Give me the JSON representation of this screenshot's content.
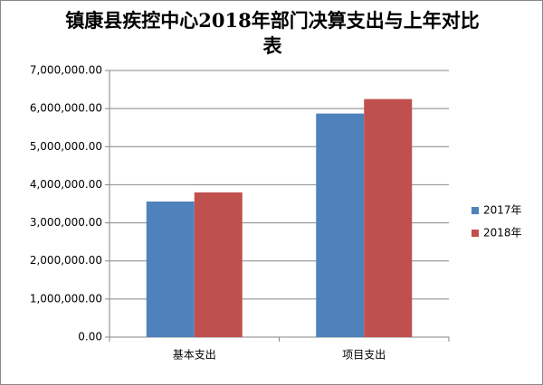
{
  "chart_data": {
    "type": "bar",
    "title": "镇康县疾控中心2018年部门决算支出与上年对比表",
    "categories": [
      "基本支出",
      "项目支出"
    ],
    "series": [
      {
        "name": "2017年",
        "color": "#4f81bd",
        "values": [
          3560000,
          5870000
        ]
      },
      {
        "name": "2018年",
        "color": "#c0504d",
        "values": [
          3800000,
          6250000
        ]
      }
    ],
    "ylim": [
      0,
      7000000
    ],
    "yticks": [
      {
        "value": 0,
        "label": "0.00"
      },
      {
        "value": 1000000,
        "label": "1,000,000.00"
      },
      {
        "value": 2000000,
        "label": "2,000,000.00"
      },
      {
        "value": 3000000,
        "label": "3,000,000.00"
      },
      {
        "value": 4000000,
        "label": "4,000,000.00"
      },
      {
        "value": 5000000,
        "label": "5,000,000.00"
      },
      {
        "value": 6000000,
        "label": "6,000,000.00"
      },
      {
        "value": 7000000,
        "label": "7,000,000.00"
      }
    ],
    "grid": true,
    "legend": "right"
  }
}
